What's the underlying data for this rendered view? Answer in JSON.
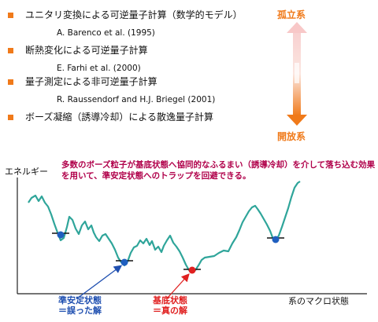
{
  "items": [
    {
      "title": "ユニタリ変換による可逆量子計算（数学的モデル）",
      "ref": "A. Barenco et al. (1995)"
    },
    {
      "title": "断熱変化による可逆量子計算",
      "ref": "E. Farhi et al. (2000)"
    },
    {
      "title": "量子測定による非可逆量子計算",
      "ref": "R. Raussendorf and H.J. Briegel (2001)"
    },
    {
      "title": "ボーズ凝縮（誘導冷却）による散逸量子計算",
      "ref": ""
    }
  ],
  "side_labels": {
    "top": "孤立系",
    "bottom": "開放系"
  },
  "annotation": "多数のボーズ粒子が基底状態へ協同的なふるまい（誘導冷却）を介して落ち込む効果を用いて、準安定状態へのトラップを回避できる。",
  "axes": {
    "y_label": "エネルギー",
    "x_label": "系のマクロ状態"
  },
  "callouts": {
    "metastable": {
      "line1": "準安定状態",
      "line2": "＝誤った解"
    },
    "ground": {
      "line1": "基底状態",
      "line2": "＝真の解"
    }
  },
  "colors": {
    "bullet": "#f07a1a",
    "curve": "#2fa59a",
    "metastable_marker": "#1f5fbf",
    "ground_marker": "#e02020",
    "annotation_text": "#b0004a",
    "arrow_top": "#f6c4c4",
    "arrow_bottom": "#f07a1a"
  }
}
